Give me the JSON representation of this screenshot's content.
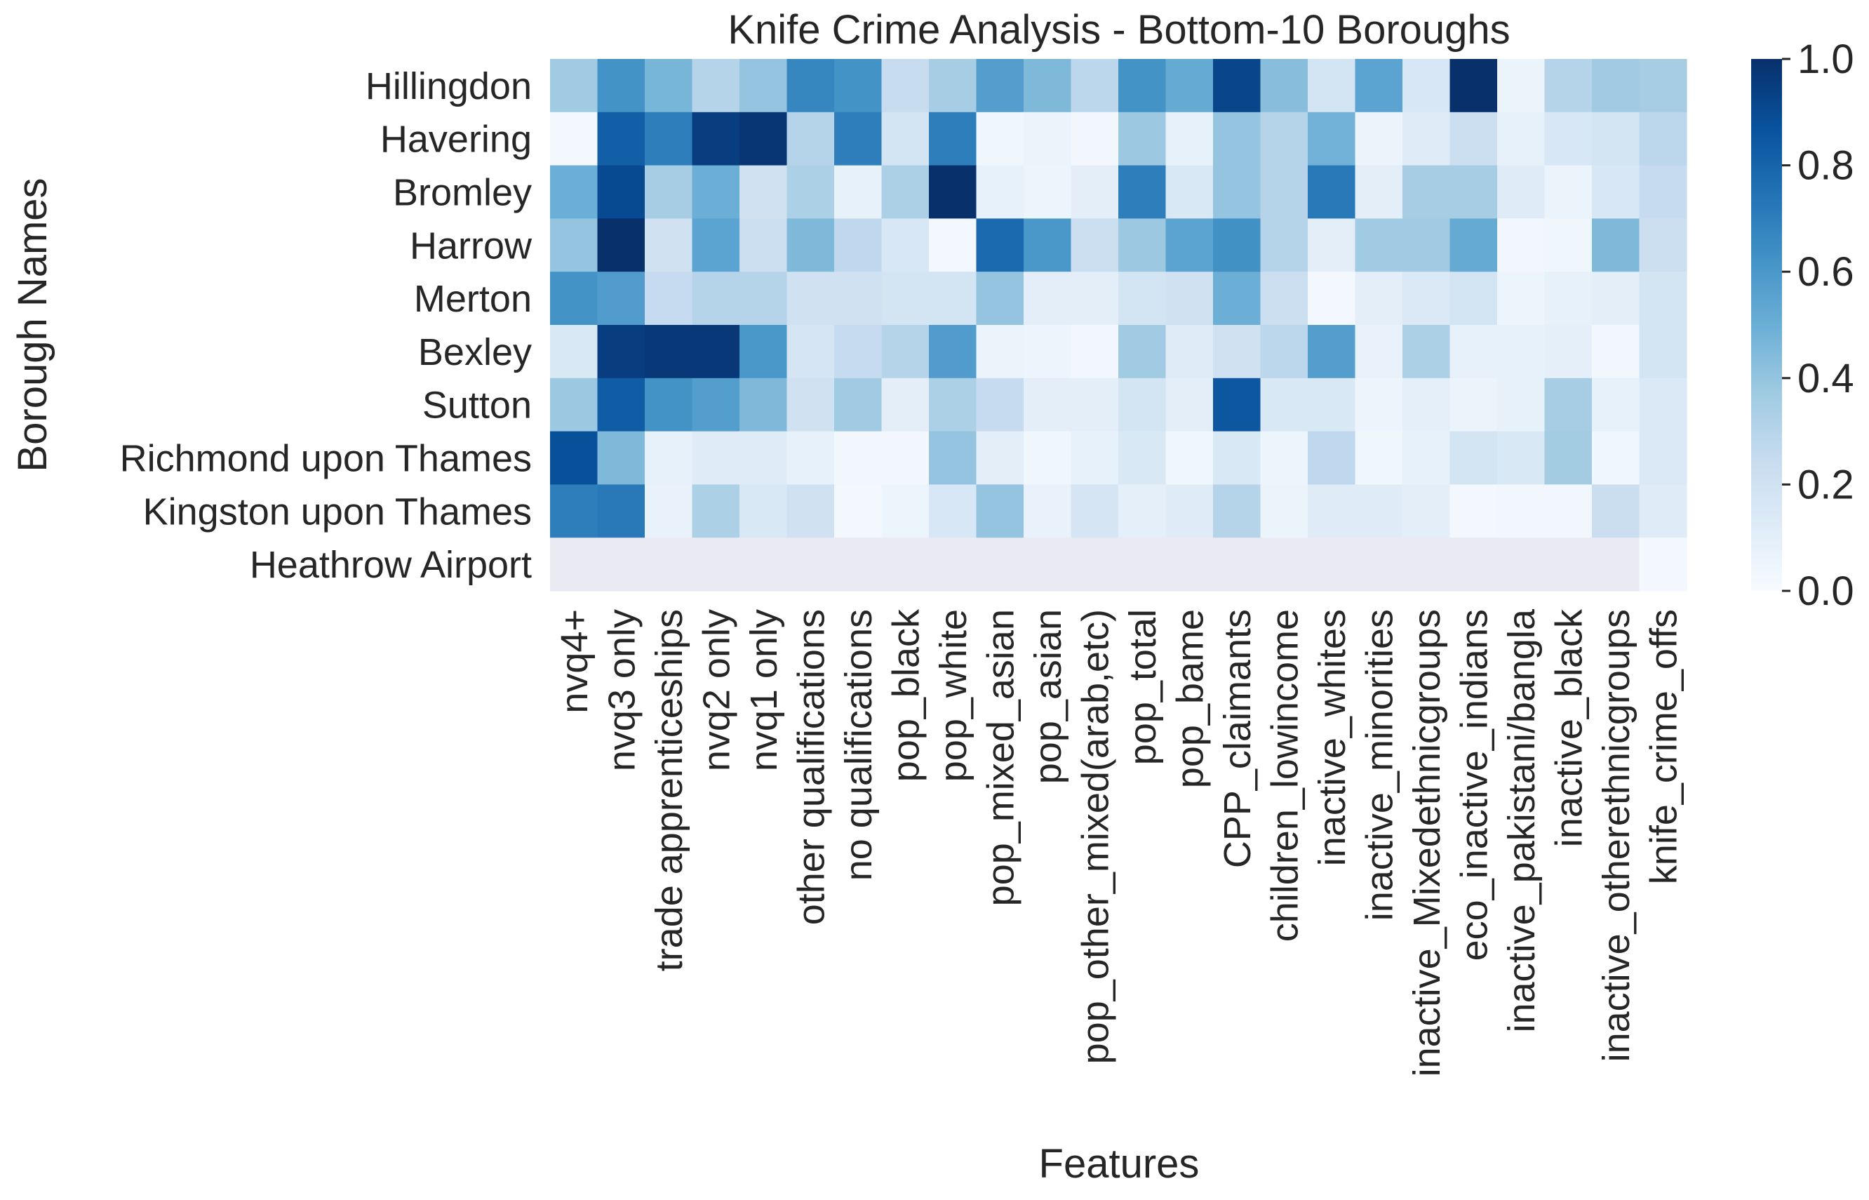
{
  "chart_data": {
    "type": "heatmap",
    "title": "Knife Crime Analysis - Bottom-10 Boroughs",
    "xlabel": "Features",
    "ylabel": "Borough Names",
    "colormap": "Blues",
    "colors": {
      "low": "#f7fbff",
      "high": "#08306b",
      "missing": "#eaeaf2",
      "text": "#262626"
    },
    "colorbar": {
      "min": 0.0,
      "max": 1.0,
      "ticks": [
        "0.0",
        "0.2",
        "0.4",
        "0.6",
        "0.8",
        "1.0"
      ]
    },
    "x_categories": [
      "nvq4+",
      "nvq3 only",
      "trade apprenticeships",
      "nvq2 only",
      "nvq1 only",
      "other qualifications",
      "no qualifications",
      "pop_black",
      "pop_white",
      "pop_mixed_asian",
      "pop_asian",
      "pop_other_mixed(arab,etc)",
      "pop_total",
      "pop_bame",
      "CPP_claimants",
      "children_lowincome",
      "inactive_whites",
      "inactive_minorities",
      "inactive_Mixedethnicgroups",
      "eco_inactive_indians",
      "inactive_pakistani/bangla",
      "inactive_black",
      "inactive_otherethnicgroups",
      "knife_crime_offs"
    ],
    "y_categories": [
      "Hillingdon",
      "Havering",
      "Bromley",
      "Harrow",
      "Merton",
      "Bexley",
      "Sutton",
      "Richmond upon Thames",
      "Kingston upon Thames",
      "Heathrow Airport"
    ],
    "values": [
      [
        0.37,
        0.62,
        0.47,
        0.3,
        0.4,
        0.67,
        0.62,
        0.24,
        0.35,
        0.57,
        0.45,
        0.28,
        0.62,
        0.52,
        0.92,
        0.43,
        0.18,
        0.55,
        0.16,
        1.0,
        0.06,
        0.3,
        0.37,
        0.35
      ],
      [
        0.02,
        0.82,
        0.7,
        0.95,
        0.98,
        0.3,
        0.7,
        0.18,
        0.7,
        0.04,
        0.06,
        0.03,
        0.38,
        0.08,
        0.4,
        0.3,
        0.48,
        0.06,
        0.12,
        0.22,
        0.08,
        0.16,
        0.18,
        0.28
      ],
      [
        0.5,
        0.9,
        0.35,
        0.5,
        0.2,
        0.33,
        0.08,
        0.33,
        1.0,
        0.08,
        0.05,
        0.1,
        0.7,
        0.15,
        0.4,
        0.3,
        0.72,
        0.1,
        0.35,
        0.35,
        0.12,
        0.06,
        0.16,
        0.25
      ],
      [
        0.4,
        1.0,
        0.2,
        0.55,
        0.22,
        0.45,
        0.27,
        0.16,
        0.02,
        0.78,
        0.6,
        0.22,
        0.38,
        0.55,
        0.63,
        0.3,
        0.1,
        0.37,
        0.37,
        0.52,
        0.03,
        0.04,
        0.45,
        0.22
      ],
      [
        0.62,
        0.58,
        0.25,
        0.3,
        0.3,
        0.2,
        0.2,
        0.18,
        0.18,
        0.4,
        0.1,
        0.1,
        0.18,
        0.2,
        0.5,
        0.22,
        0.02,
        0.1,
        0.14,
        0.18,
        0.05,
        0.08,
        0.1,
        0.18
      ],
      [
        0.15,
        0.95,
        0.97,
        0.97,
        0.6,
        0.17,
        0.25,
        0.3,
        0.58,
        0.06,
        0.05,
        0.03,
        0.37,
        0.12,
        0.2,
        0.28,
        0.57,
        0.07,
        0.33,
        0.08,
        0.08,
        0.09,
        0.03,
        0.18
      ],
      [
        0.38,
        0.83,
        0.62,
        0.57,
        0.45,
        0.2,
        0.37,
        0.1,
        0.33,
        0.25,
        0.1,
        0.1,
        0.18,
        0.1,
        0.85,
        0.15,
        0.15,
        0.05,
        0.09,
        0.06,
        0.08,
        0.35,
        0.08,
        0.14
      ],
      [
        0.88,
        0.45,
        0.08,
        0.12,
        0.12,
        0.08,
        0.03,
        0.03,
        0.4,
        0.1,
        0.04,
        0.08,
        0.15,
        0.04,
        0.15,
        0.05,
        0.27,
        0.04,
        0.08,
        0.18,
        0.15,
        0.36,
        0.04,
        0.14
      ],
      [
        0.7,
        0.72,
        0.07,
        0.33,
        0.15,
        0.2,
        0.02,
        0.05,
        0.16,
        0.4,
        0.07,
        0.17,
        0.09,
        0.12,
        0.3,
        0.06,
        0.12,
        0.12,
        0.1,
        0.02,
        0.03,
        0.03,
        0.23,
        0.12
      ],
      [
        null,
        null,
        null,
        null,
        null,
        null,
        null,
        null,
        null,
        null,
        null,
        null,
        null,
        null,
        null,
        null,
        null,
        null,
        null,
        null,
        null,
        null,
        null,
        0.02
      ]
    ]
  }
}
